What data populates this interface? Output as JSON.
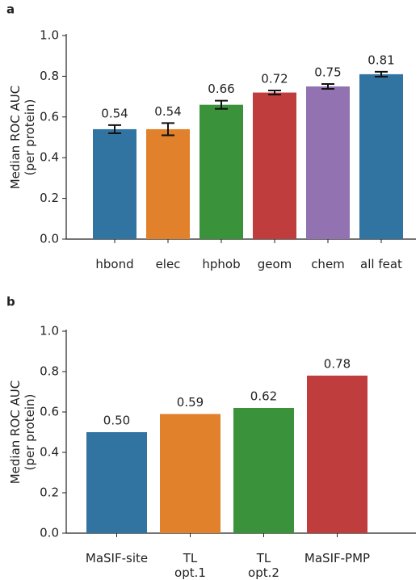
{
  "chart_data": [
    {
      "type": "bar",
      "panel": "a",
      "ylabel": "Median ROC AUC\n(per protein)",
      "categories": [
        "hbond",
        "elec",
        "hphob",
        "geom",
        "chem",
        "all feat"
      ],
      "values": [
        0.54,
        0.54,
        0.66,
        0.72,
        0.75,
        0.81
      ],
      "errors": [
        0.02,
        0.03,
        0.02,
        0.01,
        0.012,
        0.012
      ],
      "colors": [
        "#3274a1",
        "#e1812c",
        "#3a923a",
        "#c03d3e",
        "#9372b2",
        "#3274a1"
      ],
      "ylim": [
        0,
        1
      ],
      "yticks": [
        {
          "value": 0,
          "label": "0.0"
        },
        0.2,
        0.4,
        0.6,
        0.8,
        {
          "value": 1,
          "label": "1.0"
        }
      ]
    },
    {
      "type": "bar",
      "panel": "b",
      "ylabel": "Median ROC AUC\n(per protein)",
      "categories": [
        "MaSIF-site",
        "TL\nopt.1",
        "TL\nopt.2",
        "MaSIF-PMP"
      ],
      "values": [
        0.5,
        0.59,
        0.62,
        0.78
      ],
      "value_labels": [
        "0.50",
        "0.59",
        "0.62",
        "0.78"
      ],
      "colors": [
        "#3274a1",
        "#e1812c",
        "#3a923a",
        "#c03d3e"
      ],
      "ylim": [
        0,
        1
      ],
      "yticks": [
        {
          "value": 0,
          "label": "0.0"
        },
        0.2,
        0.4,
        0.6,
        0.8,
        {
          "value": 1,
          "label": "1.0"
        }
      ]
    }
  ]
}
